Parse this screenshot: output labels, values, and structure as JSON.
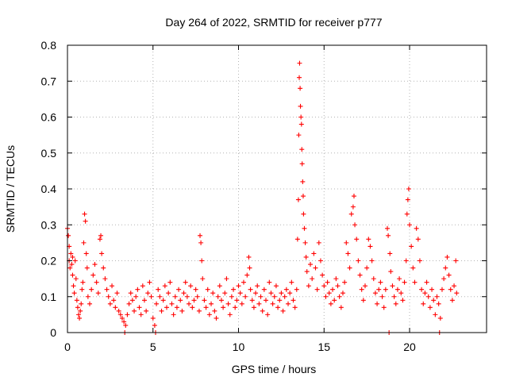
{
  "chart_data": {
    "type": "scatter",
    "title": "Day 264 of 2022, SRMTID for receiver p777",
    "xlabel": "GPS time / hours",
    "ylabel": "SRMTID / TECUs",
    "xlim": [
      0,
      24.5
    ],
    "ylim": [
      0,
      0.8
    ],
    "xticks": [
      0,
      5,
      10,
      15,
      20
    ],
    "yticks": [
      0,
      0.1,
      0.2,
      0.3,
      0.4,
      0.5,
      0.6,
      0.7,
      0.8
    ],
    "xtick_labels": [
      "0",
      "5",
      "10",
      "15",
      "20"
    ],
    "ytick_labels": [
      "0",
      "0.1",
      "0.2",
      "0.3",
      "0.4",
      "0.5",
      "0.6",
      "0.7",
      "0.8"
    ],
    "grid": true,
    "marker": "+",
    "color": "#ff0000",
    "series": [
      {
        "name": "p777",
        "points": [
          [
            0.0,
            0.29
          ],
          [
            0.05,
            0.27
          ],
          [
            0.1,
            0.24
          ],
          [
            0.1,
            0.2
          ],
          [
            0.15,
            0.18
          ],
          [
            0.2,
            0.22
          ],
          [
            0.25,
            0.19
          ],
          [
            0.3,
            0.21
          ],
          [
            0.3,
            0.16
          ],
          [
            0.35,
            0.13
          ],
          [
            0.4,
            0.11
          ],
          [
            0.45,
            0.2
          ],
          [
            0.5,
            0.15
          ],
          [
            0.55,
            0.09
          ],
          [
            0.6,
            0.07
          ],
          [
            0.65,
            0.05
          ],
          [
            0.7,
            0.04
          ],
          [
            0.75,
            0.06
          ],
          [
            0.8,
            0.08
          ],
          [
            0.85,
            0.12
          ],
          [
            0.9,
            0.14
          ],
          [
            0.95,
            0.25
          ],
          [
            1.0,
            0.33
          ],
          [
            1.05,
            0.31
          ],
          [
            1.1,
            0.22
          ],
          [
            1.15,
            0.18
          ],
          [
            1.2,
            0.1
          ],
          [
            1.3,
            0.08
          ],
          [
            1.4,
            0.12
          ],
          [
            1.5,
            0.16
          ],
          [
            1.6,
            0.19
          ],
          [
            1.7,
            0.14
          ],
          [
            1.8,
            0.11
          ],
          [
            1.9,
            0.26
          ],
          [
            1.95,
            0.27
          ],
          [
            2.0,
            0.22
          ],
          [
            2.1,
            0.18
          ],
          [
            2.2,
            0.15
          ],
          [
            2.3,
            0.12
          ],
          [
            2.4,
            0.1
          ],
          [
            2.5,
            0.08
          ],
          [
            2.6,
            0.13
          ],
          [
            2.7,
            0.09
          ],
          [
            2.8,
            0.07
          ],
          [
            2.9,
            0.11
          ],
          [
            3.0,
            0.06
          ],
          [
            3.1,
            0.05
          ],
          [
            3.2,
            0.04
          ],
          [
            3.3,
            0.03
          ],
          [
            3.35,
            0.0
          ],
          [
            3.4,
            0.02
          ],
          [
            3.5,
            0.05
          ],
          [
            3.6,
            0.08
          ],
          [
            3.7,
            0.11
          ],
          [
            3.8,
            0.09
          ],
          [
            3.9,
            0.06
          ],
          [
            4.0,
            0.1
          ],
          [
            4.1,
            0.12
          ],
          [
            4.2,
            0.07
          ],
          [
            4.3,
            0.05
          ],
          [
            4.4,
            0.13
          ],
          [
            4.5,
            0.09
          ],
          [
            4.6,
            0.06
          ],
          [
            4.7,
            0.11
          ],
          [
            4.8,
            0.14
          ],
          [
            4.9,
            0.1
          ],
          [
            5.0,
            0.04
          ],
          [
            5.1,
            0.02
          ],
          [
            5.15,
            0.0
          ],
          [
            5.2,
            0.08
          ],
          [
            5.3,
            0.12
          ],
          [
            5.4,
            0.1
          ],
          [
            5.5,
            0.06
          ],
          [
            5.6,
            0.09
          ],
          [
            5.7,
            0.13
          ],
          [
            5.8,
            0.07
          ],
          [
            5.9,
            0.11
          ],
          [
            6.0,
            0.14
          ],
          [
            6.1,
            0.08
          ],
          [
            6.2,
            0.05
          ],
          [
            6.3,
            0.1
          ],
          [
            6.4,
            0.07
          ],
          [
            6.5,
            0.12
          ],
          [
            6.6,
            0.09
          ],
          [
            6.7,
            0.06
          ],
          [
            6.8,
            0.11
          ],
          [
            6.9,
            0.14
          ],
          [
            7.0,
            0.1
          ],
          [
            7.1,
            0.08
          ],
          [
            7.2,
            0.13
          ],
          [
            7.3,
            0.07
          ],
          [
            7.4,
            0.09
          ],
          [
            7.5,
            0.12
          ],
          [
            7.6,
            0.1
          ],
          [
            7.7,
            0.06
          ],
          [
            7.75,
            0.27
          ],
          [
            7.8,
            0.25
          ],
          [
            7.85,
            0.2
          ],
          [
            7.9,
            0.15
          ],
          [
            8.0,
            0.09
          ],
          [
            8.1,
            0.07
          ],
          [
            8.2,
            0.12
          ],
          [
            8.3,
            0.05
          ],
          [
            8.4,
            0.08
          ],
          [
            8.5,
            0.11
          ],
          [
            8.6,
            0.06
          ],
          [
            8.7,
            0.04
          ],
          [
            8.8,
            0.1
          ],
          [
            8.9,
            0.13
          ],
          [
            9.0,
            0.09
          ],
          [
            9.1,
            0.07
          ],
          [
            9.2,
            0.11
          ],
          [
            9.3,
            0.15
          ],
          [
            9.4,
            0.08
          ],
          [
            9.5,
            0.05
          ],
          [
            9.6,
            0.1
          ],
          [
            9.7,
            0.12
          ],
          [
            9.8,
            0.07
          ],
          [
            9.9,
            0.09
          ],
          [
            10.0,
            0.13
          ],
          [
            10.1,
            0.11
          ],
          [
            10.2,
            0.08
          ],
          [
            10.3,
            0.14
          ],
          [
            10.4,
            0.1
          ],
          [
            10.5,
            0.16
          ],
          [
            10.6,
            0.21
          ],
          [
            10.65,
            0.18
          ],
          [
            10.7,
            0.12
          ],
          [
            10.8,
            0.09
          ],
          [
            10.9,
            0.07
          ],
          [
            11.0,
            0.11
          ],
          [
            11.1,
            0.13
          ],
          [
            11.2,
            0.08
          ],
          [
            11.3,
            0.1
          ],
          [
            11.4,
            0.06
          ],
          [
            11.5,
            0.12
          ],
          [
            11.6,
            0.09
          ],
          [
            11.7,
            0.05
          ],
          [
            11.8,
            0.14
          ],
          [
            11.9,
            0.11
          ],
          [
            12.0,
            0.08
          ],
          [
            12.1,
            0.1
          ],
          [
            12.2,
            0.13
          ],
          [
            12.3,
            0.07
          ],
          [
            12.4,
            0.09
          ],
          [
            12.5,
            0.11
          ],
          [
            12.6,
            0.06
          ],
          [
            12.7,
            0.1
          ],
          [
            12.8,
            0.12
          ],
          [
            12.9,
            0.08
          ],
          [
            13.0,
            0.11
          ],
          [
            13.1,
            0.14
          ],
          [
            13.2,
            0.09
          ],
          [
            13.3,
            0.07
          ],
          [
            13.4,
            0.12
          ],
          [
            13.45,
            0.26
          ],
          [
            13.5,
            0.37
          ],
          [
            13.52,
            0.55
          ],
          [
            13.55,
            0.71
          ],
          [
            13.57,
            0.75
          ],
          [
            13.6,
            0.68
          ],
          [
            13.62,
            0.63
          ],
          [
            13.65,
            0.6
          ],
          [
            13.68,
            0.58
          ],
          [
            13.7,
            0.51
          ],
          [
            13.72,
            0.47
          ],
          [
            13.75,
            0.42
          ],
          [
            13.78,
            0.38
          ],
          [
            13.8,
            0.33
          ],
          [
            13.85,
            0.29
          ],
          [
            13.9,
            0.25
          ],
          [
            13.95,
            0.21
          ],
          [
            14.0,
            0.17
          ],
          [
            14.1,
            0.13
          ],
          [
            14.2,
            0.19
          ],
          [
            14.3,
            0.15
          ],
          [
            14.4,
            0.22
          ],
          [
            14.5,
            0.18
          ],
          [
            14.6,
            0.12
          ],
          [
            14.7,
            0.25
          ],
          [
            14.8,
            0.2
          ],
          [
            14.9,
            0.16
          ],
          [
            15.0,
            0.13
          ],
          [
            15.1,
            0.1
          ],
          [
            15.2,
            0.14
          ],
          [
            15.3,
            0.11
          ],
          [
            15.4,
            0.08
          ],
          [
            15.5,
            0.12
          ],
          [
            15.6,
            0.09
          ],
          [
            15.7,
            0.15
          ],
          [
            15.8,
            0.13
          ],
          [
            15.9,
            0.1
          ],
          [
            16.0,
            0.07
          ],
          [
            16.1,
            0.11
          ],
          [
            16.2,
            0.14
          ],
          [
            16.3,
            0.25
          ],
          [
            16.4,
            0.22
          ],
          [
            16.5,
            0.18
          ],
          [
            16.6,
            0.33
          ],
          [
            16.7,
            0.35
          ],
          [
            16.75,
            0.38
          ],
          [
            16.8,
            0.3
          ],
          [
            16.9,
            0.26
          ],
          [
            17.0,
            0.2
          ],
          [
            17.1,
            0.16
          ],
          [
            17.2,
            0.12
          ],
          [
            17.3,
            0.09
          ],
          [
            17.4,
            0.13
          ],
          [
            17.5,
            0.18
          ],
          [
            17.6,
            0.26
          ],
          [
            17.7,
            0.24
          ],
          [
            17.8,
            0.2
          ],
          [
            17.9,
            0.15
          ],
          [
            18.0,
            0.11
          ],
          [
            18.1,
            0.08
          ],
          [
            18.2,
            0.12
          ],
          [
            18.3,
            0.14
          ],
          [
            18.4,
            0.1
          ],
          [
            18.5,
            0.07
          ],
          [
            18.6,
            0.12
          ],
          [
            18.7,
            0.29
          ],
          [
            18.75,
            0.27
          ],
          [
            18.8,
            0.0
          ],
          [
            18.85,
            0.22
          ],
          [
            18.9,
            0.17
          ],
          [
            19.0,
            0.13
          ],
          [
            19.1,
            0.1
          ],
          [
            19.2,
            0.08
          ],
          [
            19.3,
            0.12
          ],
          [
            19.4,
            0.15
          ],
          [
            19.5,
            0.11
          ],
          [
            19.6,
            0.09
          ],
          [
            19.7,
            0.14
          ],
          [
            19.8,
            0.2
          ],
          [
            19.85,
            0.33
          ],
          [
            19.9,
            0.37
          ],
          [
            19.95,
            0.4
          ],
          [
            20.0,
            0.3
          ],
          [
            20.1,
            0.24
          ],
          [
            20.2,
            0.18
          ],
          [
            20.3,
            0.14
          ],
          [
            20.4,
            0.29
          ],
          [
            20.5,
            0.26
          ],
          [
            20.6,
            0.2
          ],
          [
            20.7,
            0.12
          ],
          [
            20.8,
            0.08
          ],
          [
            20.9,
            0.11
          ],
          [
            21.0,
            0.14
          ],
          [
            21.1,
            0.1
          ],
          [
            21.2,
            0.07
          ],
          [
            21.3,
            0.12
          ],
          [
            21.4,
            0.09
          ],
          [
            21.5,
            0.05
          ],
          [
            21.6,
            0.1
          ],
          [
            21.7,
            0.08
          ],
          [
            21.75,
            0.0
          ],
          [
            21.8,
            0.04
          ],
          [
            21.9,
            0.12
          ],
          [
            22.0,
            0.15
          ],
          [
            22.1,
            0.18
          ],
          [
            22.2,
            0.21
          ],
          [
            22.3,
            0.16
          ],
          [
            22.4,
            0.12
          ],
          [
            22.5,
            0.09
          ],
          [
            22.6,
            0.13
          ],
          [
            22.7,
            0.2
          ],
          [
            22.75,
            0.11
          ]
        ]
      }
    ]
  }
}
